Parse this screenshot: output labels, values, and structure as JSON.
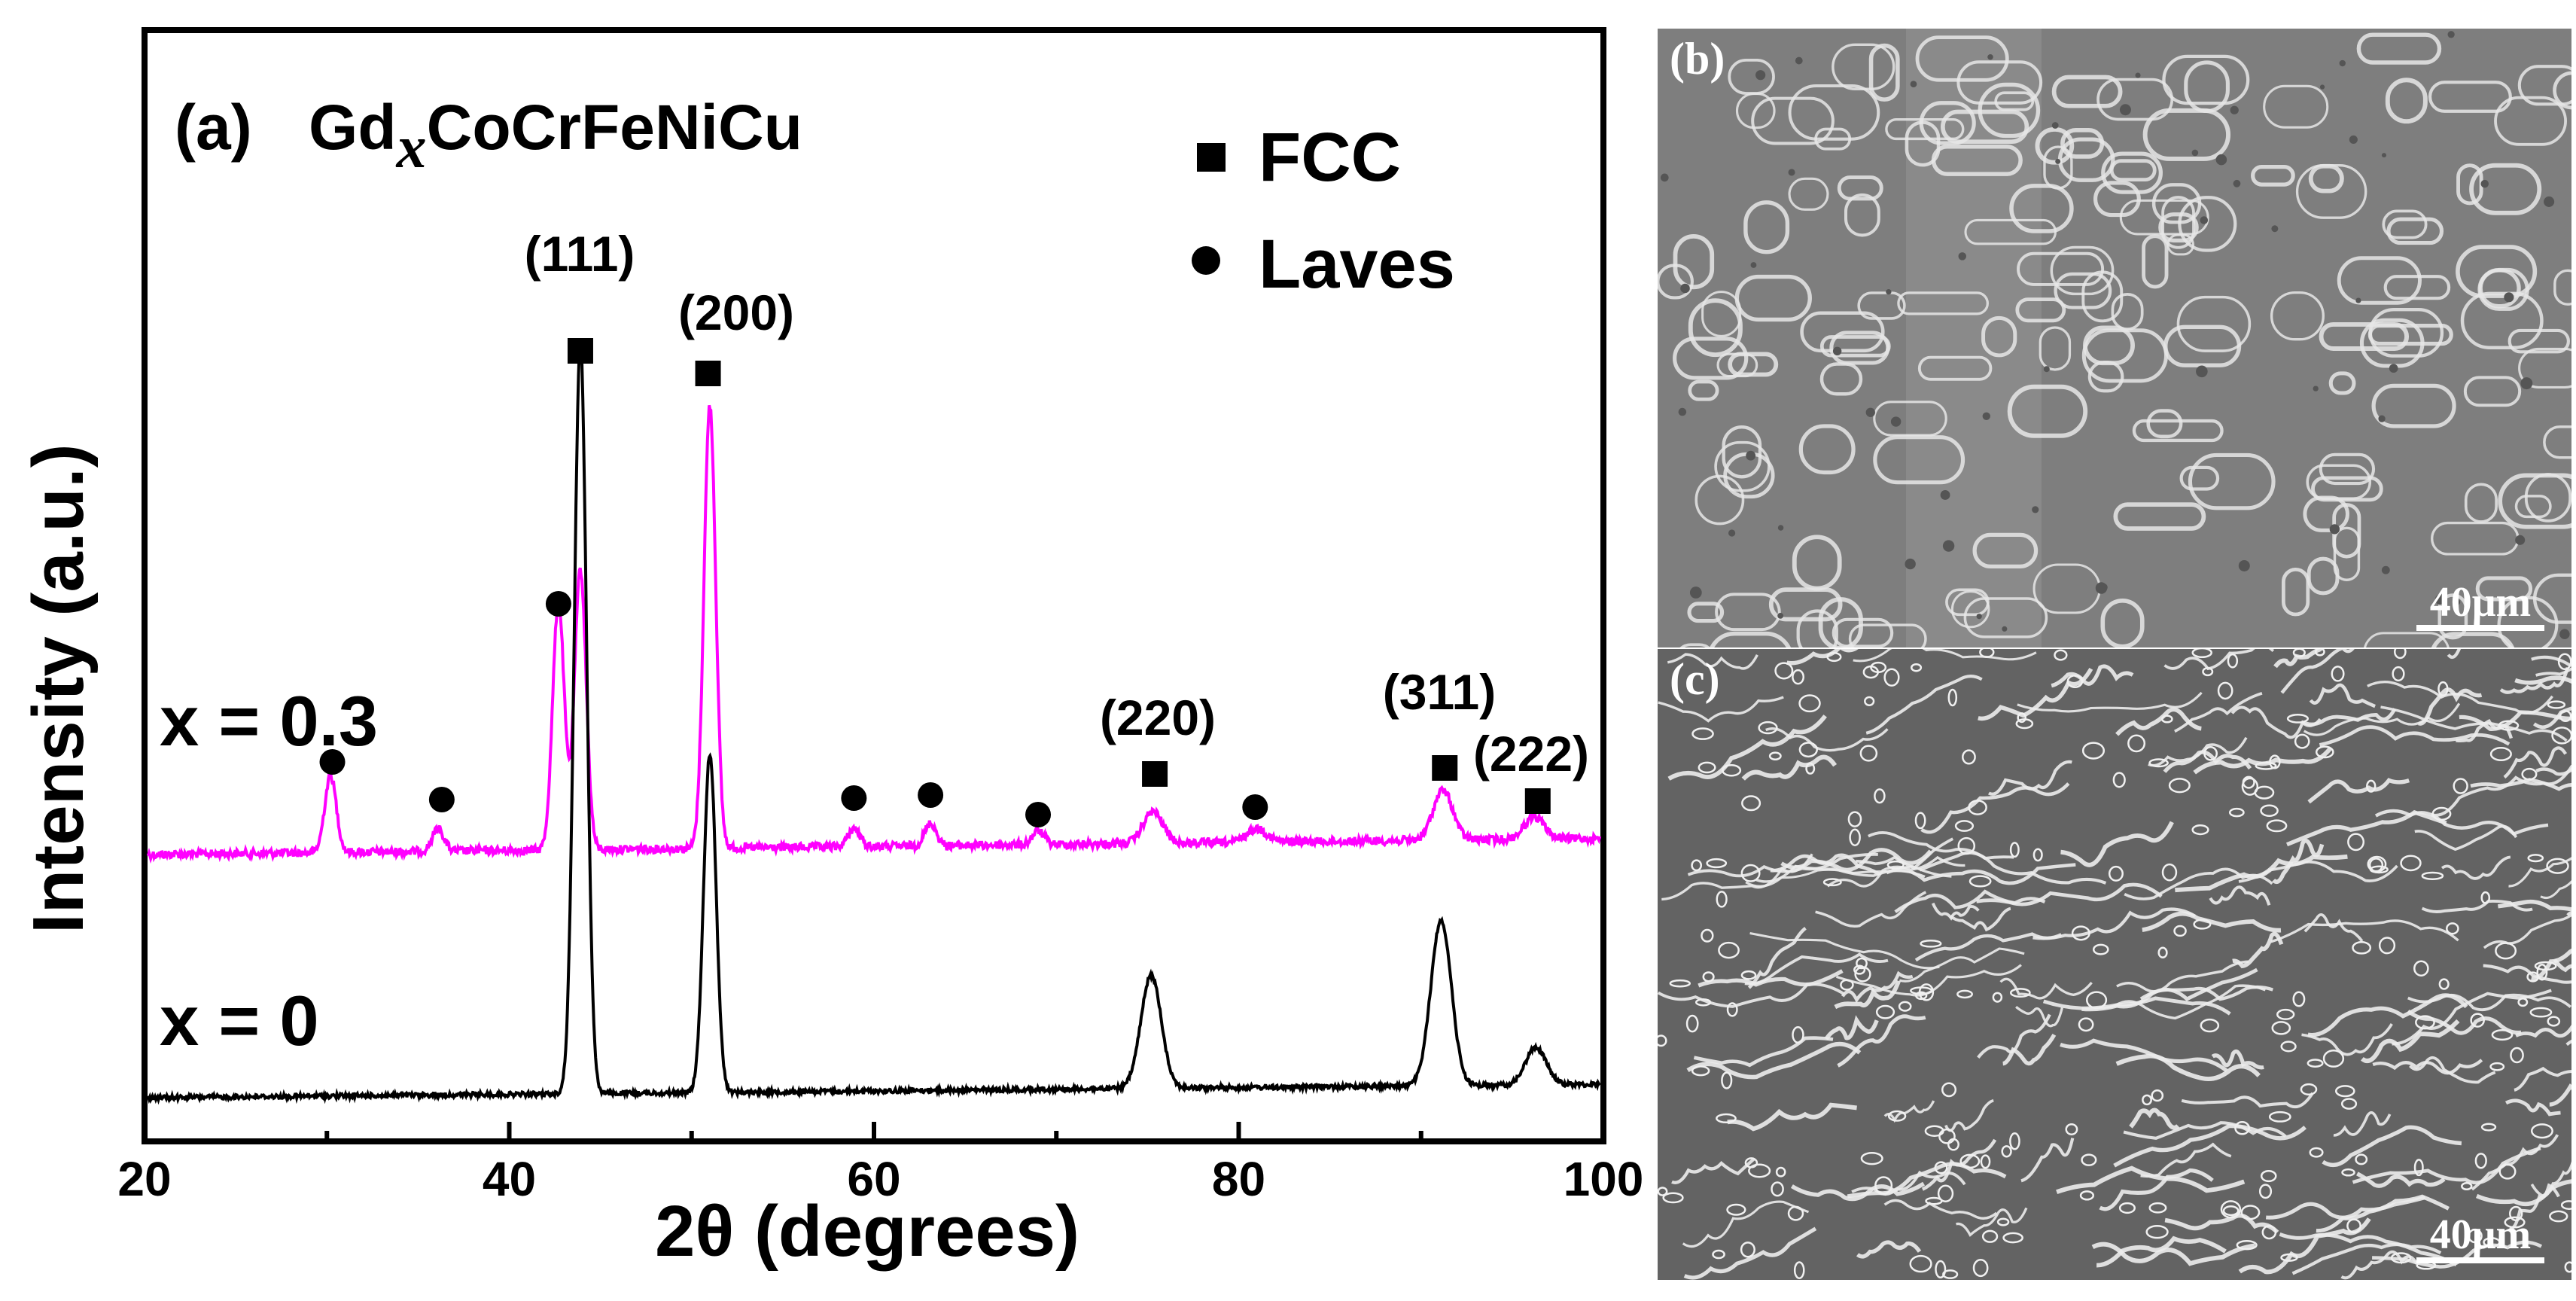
{
  "chart_data": {
    "type": "line",
    "panel_label": "(a)",
    "title_prefix": "Gd",
    "title_subscript": "x",
    "title_suffix": "CoCrFeNiCu",
    "xlabel": "2θ (degrees)",
    "ylabel": "Intensity (a.u.)",
    "xlim": [
      20,
      100
    ],
    "xticks": [
      20,
      40,
      60,
      80,
      100
    ],
    "grid": false,
    "legend_position": "top-right",
    "legend": [
      {
        "label": "FCC",
        "marker": "square"
      },
      {
        "label": "Laves",
        "marker": "circle"
      }
    ],
    "series": [
      {
        "name": "x = 0.3",
        "color": "#ff00ff",
        "peaks": [
          [
            30.2,
            0.17
          ],
          [
            36.1,
            0.05
          ],
          [
            42.7,
            0.55
          ],
          [
            43.9,
            0.62
          ],
          [
            51.0,
            0.98
          ],
          [
            58.9,
            0.04
          ],
          [
            63.1,
            0.05
          ],
          [
            69.0,
            0.03
          ],
          [
            75.3,
            0.07
          ],
          [
            81.0,
            0.03
          ],
          [
            91.2,
            0.11
          ],
          [
            96.2,
            0.05
          ]
        ]
      },
      {
        "name": "x = 0",
        "color": "#000000",
        "peaks": [
          [
            43.9,
            1.0
          ],
          [
            51.0,
            0.45
          ],
          [
            75.2,
            0.15
          ],
          [
            91.1,
            0.22
          ],
          [
            96.3,
            0.05
          ]
        ]
      }
    ],
    "annotations": {
      "fcc_peaks": [
        {
          "x": 43.9,
          "label": "(111)"
        },
        {
          "x": 50.9,
          "label": "(200)"
        },
        {
          "x": 75.4,
          "label": "(220)"
        },
        {
          "x": 91.3,
          "label": "(311)"
        },
        {
          "x": 96.4,
          "label": "(222)"
        }
      ],
      "laves_peaks": [
        30.3,
        36.3,
        42.7,
        58.9,
        63.1,
        69.0,
        80.9
      ]
    }
  },
  "sem_images": [
    {
      "label": "(b)",
      "scale_bar": "40μm"
    },
    {
      "label": "(c)",
      "scale_bar": "40μm"
    }
  ],
  "colors": {
    "magenta_series": "#ff00ff",
    "black_series": "#000000",
    "sem_background": "#7c7c7c"
  }
}
